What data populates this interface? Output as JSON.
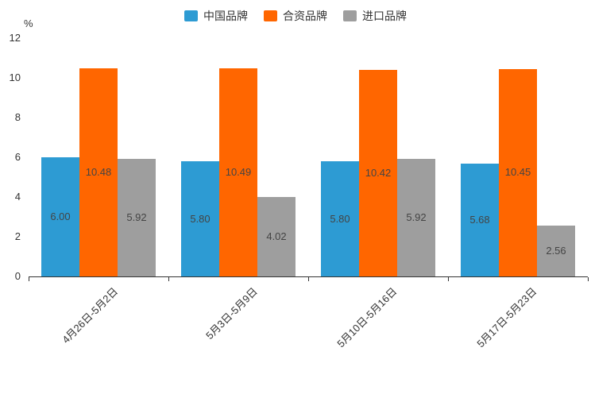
{
  "chart_data": {
    "type": "bar",
    "title": "",
    "unit_label": "%",
    "categories": [
      "4月26日-5月2日",
      "5月3日-5月9日",
      "5月10日-5月16日",
      "5月17日-5月23日"
    ],
    "series": [
      {
        "name": "中国品牌",
        "color": "#2D9BD3",
        "values": [
          6.0,
          5.8,
          5.8,
          5.68
        ],
        "labels": [
          "6.00",
          "5.80",
          "5.80",
          "5.68"
        ]
      },
      {
        "name": "合资品牌",
        "color": "#FF6600",
        "values": [
          10.48,
          10.49,
          10.42,
          10.45
        ],
        "labels": [
          "10.48",
          "10.49",
          "10.42",
          "10.45"
        ]
      },
      {
        "name": "进口品牌",
        "color": "#9E9E9E",
        "values": [
          5.92,
          4.02,
          5.92,
          2.56
        ],
        "labels": [
          "5.92",
          "4.02",
          "5.92",
          "2.56"
        ]
      }
    ],
    "ylim": [
      0,
      12
    ],
    "yticks": [
      0,
      2,
      4,
      6,
      8,
      10,
      12
    ],
    "legend_position": "top",
    "grid": false,
    "axis_color": "#333333",
    "label_color": "#444444"
  }
}
